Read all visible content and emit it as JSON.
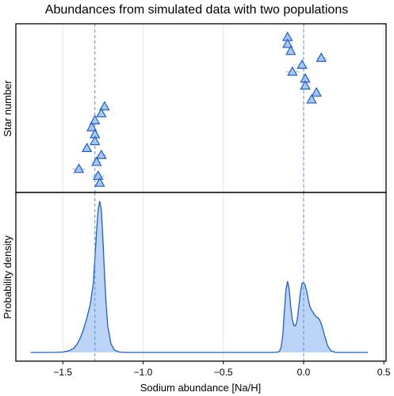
{
  "chart_data": {
    "type": "scatter",
    "title": "Abundances from simulated data with two populations",
    "xlabel": "Sodium abundance [Na/H]",
    "xlim": [
      -1.75,
      0.52
    ],
    "xticks": [
      -1.5,
      -1.0,
      -0.5,
      0.0,
      0.5
    ],
    "xtick_labels": [
      "−1.5",
      "−1.0",
      "−0.5",
      "0.0",
      "0.5"
    ],
    "grid": true,
    "colors": {
      "marker": "#1f5fcc",
      "marker_fill": "#a8c8f0",
      "density_line": "#1f5fcc",
      "density_fill": "#bcd4f6",
      "reference_line": "#4a90e2",
      "grid": "#e6e6e6"
    },
    "reference_lines": [
      -1.3,
      0.0
    ],
    "top_panel": {
      "ylabel": "Star number",
      "marker": "triangle",
      "points": [
        {
          "x": -0.1,
          "err": 0.02,
          "star": 1
        },
        {
          "x": -0.1,
          "err": 0.02,
          "star": 2
        },
        {
          "x": -0.08,
          "err": 0.02,
          "star": 3
        },
        {
          "x": 0.11,
          "err": 0.03,
          "star": 4
        },
        {
          "x": -0.01,
          "err": 0.02,
          "star": 5
        },
        {
          "x": -0.07,
          "err": 0.04,
          "star": 6
        },
        {
          "x": 0.01,
          "err": 0.02,
          "star": 7
        },
        {
          "x": 0.01,
          "err": 0.02,
          "star": 8
        },
        {
          "x": 0.08,
          "err": 0.02,
          "star": 9
        },
        {
          "x": 0.05,
          "err": 0.02,
          "star": 10
        },
        {
          "x": -1.24,
          "err": 0.02,
          "star": 11
        },
        {
          "x": -1.26,
          "err": 0.02,
          "star": 12
        },
        {
          "x": -1.3,
          "err": 0.02,
          "star": 13
        },
        {
          "x": -1.32,
          "err": 0.02,
          "star": 14
        },
        {
          "x": -1.3,
          "err": 0.02,
          "star": 15
        },
        {
          "x": -1.3,
          "err": 0.02,
          "star": 16
        },
        {
          "x": -1.35,
          "err": 0.02,
          "star": 17
        },
        {
          "x": -1.26,
          "err": 0.03,
          "star": 18
        },
        {
          "x": -1.29,
          "err": 0.03,
          "star": 19
        },
        {
          "x": -1.4,
          "err": 0.04,
          "star": 20
        },
        {
          "x": -1.28,
          "err": 0.04,
          "star": 21
        },
        {
          "x": -1.27,
          "err": 0.02,
          "star": 22
        }
      ]
    },
    "bottom_panel": {
      "ylabel": "Probability density",
      "type": "area",
      "x": [
        -1.7,
        -1.6,
        -1.55,
        -1.5,
        -1.46,
        -1.43,
        -1.41,
        -1.39,
        -1.37,
        -1.35,
        -1.33,
        -1.31,
        -1.3,
        -1.29,
        -1.28,
        -1.27,
        -1.26,
        -1.25,
        -1.24,
        -1.23,
        -1.22,
        -1.2,
        -1.18,
        -1.15,
        -1.1,
        -1.0,
        -0.5,
        -0.2,
        -0.16,
        -0.15,
        -0.14,
        -0.13,
        -0.12,
        -0.11,
        -0.1,
        -0.09,
        -0.08,
        -0.07,
        -0.06,
        -0.05,
        -0.04,
        -0.03,
        -0.02,
        -0.01,
        0.0,
        0.01,
        0.02,
        0.03,
        0.04,
        0.05,
        0.06,
        0.07,
        0.08,
        0.09,
        0.1,
        0.11,
        0.12,
        0.13,
        0.14,
        0.15,
        0.17,
        0.2,
        0.3,
        0.4
      ],
      "y": [
        0.0,
        0.0,
        0.002,
        0.01,
        0.04,
        0.1,
        0.2,
        0.34,
        0.55,
        0.8,
        1.1,
        1.6,
        2.2,
        2.8,
        3.3,
        3.5,
        3.3,
        2.6,
        1.8,
        1.1,
        0.6,
        0.2,
        0.06,
        0.01,
        0.0,
        0.0,
        0.0,
        0.0,
        0.01,
        0.03,
        0.12,
        0.4,
        0.95,
        1.45,
        1.65,
        1.45,
        1.05,
        0.75,
        0.62,
        0.62,
        0.75,
        1.05,
        1.38,
        1.6,
        1.62,
        1.55,
        1.4,
        1.2,
        1.05,
        0.98,
        0.92,
        0.86,
        0.82,
        0.8,
        0.75,
        0.66,
        0.54,
        0.4,
        0.27,
        0.15,
        0.04,
        0.0,
        0.0,
        0.0
      ]
    }
  }
}
